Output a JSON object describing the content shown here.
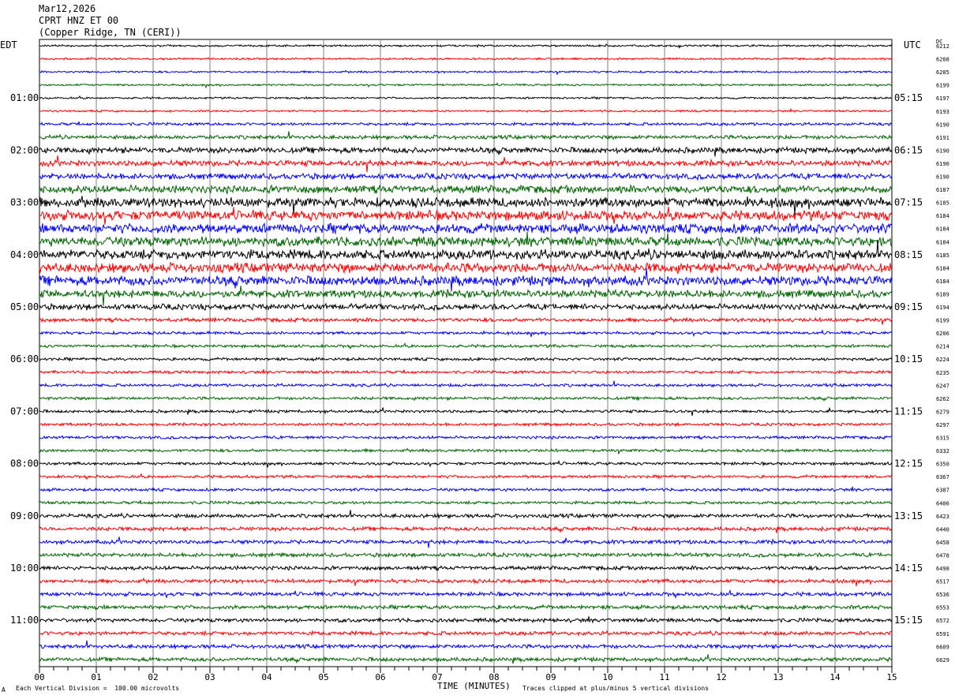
{
  "header": {
    "date": "Mar12,2026",
    "station": "CPRT HNZ ET 00",
    "location": "(Copper Ridge, TN (CERI))"
  },
  "left_tz": "EDT",
  "right_tz": "UTC",
  "dc_label": "DC",
  "footer": {
    "scale_note": "Each Vertical Division =  100.00 microvolts",
    "clip_note": "Traces clipped at plus/minus 5 vertical divisions",
    "corner_mark": "A"
  },
  "colors": {
    "black": "#000000",
    "red": "#ff0000",
    "blue": "#0000ff",
    "green": "#006600",
    "grid": "#808080"
  },
  "chart_data": {
    "type": "line",
    "title": "CPRT HNZ ET 00",
    "xlabel": "TIME (MINUTES)",
    "xlim": [
      0,
      15
    ],
    "x_ticks": [
      "00",
      "01",
      "02",
      "03",
      "04",
      "05",
      "06",
      "07",
      "08",
      "09",
      "10",
      "11",
      "12",
      "13",
      "14",
      "15"
    ],
    "left_time_labels": [
      "01:00",
      "02:00",
      "03:00",
      "04:00",
      "05:00",
      "06:00",
      "07:00",
      "08:00",
      "09:00",
      "10:00",
      "11:00"
    ],
    "right_time_labels": [
      "05:15",
      "06:15",
      "07:15",
      "08:15",
      "09:15",
      "10:15",
      "11:15",
      "12:15",
      "13:15",
      "14:15",
      "15:15"
    ],
    "dc_offsets": [
      6212,
      6208,
      6205,
      6199,
      6197,
      6193,
      6190,
      6191,
      6190,
      6190,
      6190,
      6187,
      6185,
      6184,
      6184,
      6184,
      6185,
      6184,
      6184,
      6189,
      6194,
      6199,
      6206,
      6214,
      6224,
      6235,
      6247,
      6262,
      6279,
      6297,
      6315,
      6332,
      6350,
      6367,
      6387,
      6406,
      6423,
      6440,
      6458,
      6478,
      6498,
      6517,
      6536,
      6553,
      6572,
      6591,
      6609,
      6629
    ],
    "trace_colors": [
      "black",
      "red",
      "blue",
      "green"
    ],
    "trace_amplitude": [
      1,
      1,
      1,
      1,
      1,
      1,
      1.5,
      2,
      3,
      3,
      3,
      4,
      5,
      5,
      5,
      5,
      5,
      5,
      5,
      4,
      3,
      2,
      1.5,
      1.5,
      1.5,
      1.5,
      1.5,
      1.5,
      1.5,
      1.5,
      1.5,
      1.5,
      1.5,
      1.5,
      1.5,
      1.5,
      2,
      2,
      2,
      2,
      2,
      2,
      2,
      2,
      2,
      2,
      2,
      2
    ]
  }
}
